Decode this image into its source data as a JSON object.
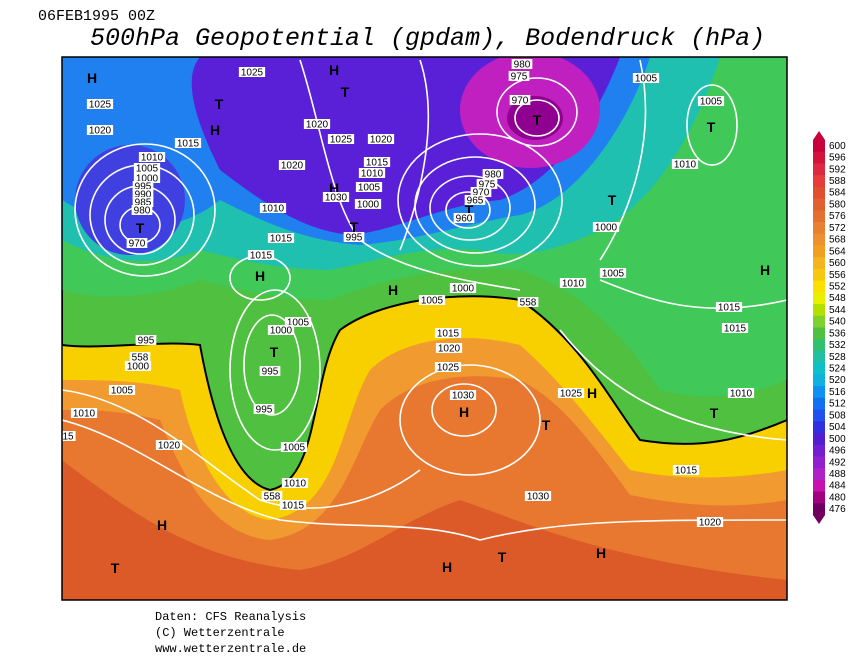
{
  "header": {
    "date": "06FEB1995 00Z",
    "title": "500hPa Geopotential (gpdam), Bodendruck (hPa)"
  },
  "colorbar": {
    "ticks": [
      600,
      596,
      592,
      588,
      584,
      580,
      576,
      572,
      568,
      564,
      560,
      556,
      552,
      548,
      544,
      540,
      536,
      532,
      528,
      524,
      520,
      516,
      512,
      508,
      504,
      500,
      496,
      492,
      488,
      484,
      480,
      476
    ],
    "colors": [
      "#c8003c",
      "#d2143c",
      "#dc2840",
      "#e63c3c",
      "#e05030",
      "#e06030",
      "#e47030",
      "#e88030",
      "#ec9030",
      "#f0a020",
      "#f4b420",
      "#f8c810",
      "#fce000",
      "#e8f000",
      "#b4e000",
      "#80d030",
      "#50c040",
      "#30c070",
      "#20c0a0",
      "#10c0c8",
      "#10b0e0",
      "#1090f0",
      "#1070f0",
      "#2050f0",
      "#3030e0",
      "#5020d0",
      "#7020d0",
      "#9020d0",
      "#b020c8",
      "#c810b0",
      "#a00080",
      "#700060"
    ]
  },
  "map": {
    "labels": [
      "H",
      "1025",
      "H",
      "T",
      "980",
      "975",
      "970",
      "T",
      "1005",
      "1025",
      "T",
      "H",
      "1020",
      "1015",
      "1020",
      "1025",
      "1020",
      "1005",
      "T",
      "1010",
      "1005",
      "1000",
      "995",
      "990",
      "985",
      "980",
      "T",
      "970",
      "1020",
      "1015",
      "1010",
      "1005",
      "H",
      "1030",
      "1000",
      "T",
      "995",
      "1010",
      "1015",
      "980",
      "975",
      "970",
      "965",
      "T",
      "960",
      "T",
      "1010",
      "1000",
      "H",
      "1015",
      "H",
      "1000",
      "1010",
      "1005",
      "H",
      "1005",
      "558",
      "1015",
      "1015",
      "1015",
      "1005",
      "1000",
      "T",
      "995",
      "558",
      "995",
      "1000",
      "1020",
      "1025",
      "1005",
      "1030",
      "H",
      "1025",
      "H",
      "1010",
      "T",
      "T",
      "1010",
      "995",
      "15",
      "1020",
      "1005",
      "1015",
      "1010",
      "558",
      "1015",
      "1030",
      "H",
      "1020",
      "H",
      "T",
      "H",
      "T"
    ]
  },
  "footer": {
    "source": "Daten: CFS Reanalysis",
    "copyright": "(C) Wetterzentrale",
    "url": "www.wetterzentrale.de"
  }
}
